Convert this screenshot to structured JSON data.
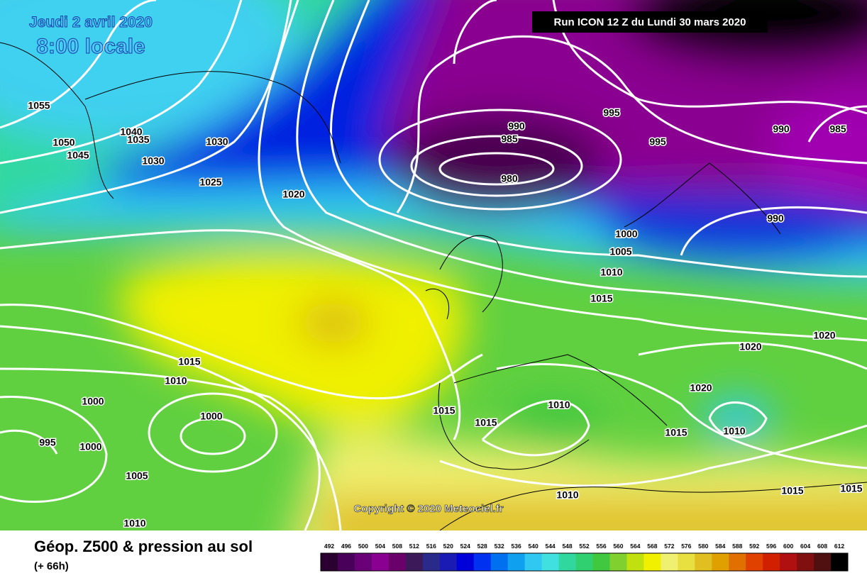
{
  "header": {
    "date": "Jeudi 2 avril 2020",
    "time": "8:00 locale",
    "run": "Run ICON 12 Z du Lundi 30 mars 2020"
  },
  "isobar_labels": [
    "1055",
    "1040",
    "1035",
    "1050",
    "1045",
    "1030",
    "1030",
    "1025",
    "1020",
    "990",
    "985",
    "980",
    "995",
    "995",
    "990",
    "985",
    "990",
    "1000",
    "1005",
    "1010",
    "1015",
    "1020",
    "1020",
    "1020",
    "1015",
    "1010",
    "1000",
    "1000",
    "995",
    "1000",
    "1005",
    "1010",
    "1015",
    "1015",
    "1010",
    "1015",
    "1010",
    "1010",
    "1015",
    "1015"
  ],
  "copyright": "Copyright © 2020 Meteociel.fr",
  "footer": {
    "title": "Géop. Z500 & pression au sol",
    "subtitle": "(+ 66h)"
  },
  "legend": {
    "ticks": [
      "492",
      "496",
      "500",
      "504",
      "508",
      "512",
      "516",
      "520",
      "524",
      "528",
      "532",
      "536",
      "540",
      "544",
      "548",
      "552",
      "556",
      "560",
      "564",
      "568",
      "572",
      "576",
      "580",
      "584",
      "588",
      "592",
      "596",
      "600",
      "604",
      "608",
      "612"
    ],
    "colors": [
      "#2a0030",
      "#48005a",
      "#6a0078",
      "#8a0090",
      "#6a006a",
      "#3c1a5a",
      "#2a2a8a",
      "#1a1ab4",
      "#0000d8",
      "#0030f0",
      "#0070f0",
      "#10a0f0",
      "#30c8f0",
      "#40e0e0",
      "#30d8a0",
      "#30d070",
      "#40c840",
      "#80d030",
      "#c0e010",
      "#f0f000",
      "#f0f070",
      "#e8e040",
      "#e0c020",
      "#e0a000",
      "#e07000",
      "#e04000",
      "#d02000",
      "#b01010",
      "#801010",
      "#501010",
      "#000000"
    ]
  }
}
